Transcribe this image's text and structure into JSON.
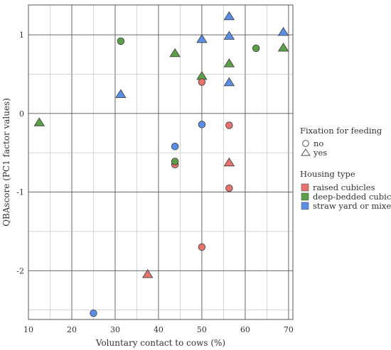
{
  "chart_data": {
    "type": "scatter",
    "xlabel": "Voluntary contact to cows (%)",
    "ylabel": "QBAscore (PC1 factor values)",
    "xlim": [
      10,
      71
    ],
    "ylim": [
      -2.62,
      1.38
    ],
    "xticks": [
      10,
      20,
      30,
      40,
      50,
      60,
      70
    ],
    "yticks": [
      -2,
      -1,
      0,
      1
    ],
    "grid": true,
    "legend": {
      "placement": "right",
      "shape_title": "Fixation for feeding",
      "shapes": [
        {
          "name": "no",
          "marker": "circle"
        },
        {
          "name": "yes",
          "marker": "triangle"
        }
      ],
      "color_title": "Housing type",
      "colors": [
        {
          "name": "raised cubicles",
          "color": "#e8736c"
        },
        {
          "name": "deep-bedded cubicles",
          "color": "#5b9f47"
        },
        {
          "name": "straw yard or mixed",
          "color": "#5b8ee6"
        }
      ]
    },
    "points": [
      {
        "x": 12.5,
        "y": -0.12,
        "housing": "deep-bedded cubicles",
        "fixation": "yes"
      },
      {
        "x": 25,
        "y": -2.54,
        "housing": "straw yard or mixed",
        "fixation": "no"
      },
      {
        "x": 31.3,
        "y": 0.92,
        "housing": "deep-bedded cubicles",
        "fixation": "no"
      },
      {
        "x": 31.3,
        "y": 0.24,
        "housing": "straw yard or mixed",
        "fixation": "yes"
      },
      {
        "x": 37.5,
        "y": -2.05,
        "housing": "raised cubicles",
        "fixation": "yes"
      },
      {
        "x": 43.8,
        "y": 0.76,
        "housing": "deep-bedded cubicles",
        "fixation": "yes"
      },
      {
        "x": 43.8,
        "y": -0.42,
        "housing": "straw yard or mixed",
        "fixation": "no"
      },
      {
        "x": 43.8,
        "y": -0.65,
        "housing": "raised cubicles",
        "fixation": "no"
      },
      {
        "x": 43.8,
        "y": -0.61,
        "housing": "deep-bedded cubicles",
        "fixation": "no"
      },
      {
        "x": 50,
        "y": 0.94,
        "housing": "straw yard or mixed",
        "fixation": "yes"
      },
      {
        "x": 50,
        "y": 0.47,
        "housing": "deep-bedded cubicles",
        "fixation": "yes"
      },
      {
        "x": 50,
        "y": 0.4,
        "housing": "raised cubicles",
        "fixation": "no"
      },
      {
        "x": 50,
        "y": -0.14,
        "housing": "straw yard or mixed",
        "fixation": "no"
      },
      {
        "x": 50,
        "y": -1.7,
        "housing": "raised cubicles",
        "fixation": "no"
      },
      {
        "x": 56.3,
        "y": 1.23,
        "housing": "straw yard or mixed",
        "fixation": "yes"
      },
      {
        "x": 56.3,
        "y": 0.98,
        "housing": "straw yard or mixed",
        "fixation": "yes"
      },
      {
        "x": 56.3,
        "y": 0.63,
        "housing": "deep-bedded cubicles",
        "fixation": "yes"
      },
      {
        "x": 56.3,
        "y": 0.39,
        "housing": "straw yard or mixed",
        "fixation": "yes"
      },
      {
        "x": 56.3,
        "y": -0.15,
        "housing": "raised cubicles",
        "fixation": "no"
      },
      {
        "x": 56.3,
        "y": -0.63,
        "housing": "raised cubicles",
        "fixation": "yes"
      },
      {
        "x": 56.3,
        "y": -0.95,
        "housing": "raised cubicles",
        "fixation": "no"
      },
      {
        "x": 62.5,
        "y": 0.83,
        "housing": "deep-bedded cubicles",
        "fixation": "no"
      },
      {
        "x": 68.8,
        "y": 1.03,
        "housing": "straw yard or mixed",
        "fixation": "yes"
      },
      {
        "x": 68.8,
        "y": 0.83,
        "housing": "deep-bedded cubicles",
        "fixation": "yes"
      }
    ]
  }
}
